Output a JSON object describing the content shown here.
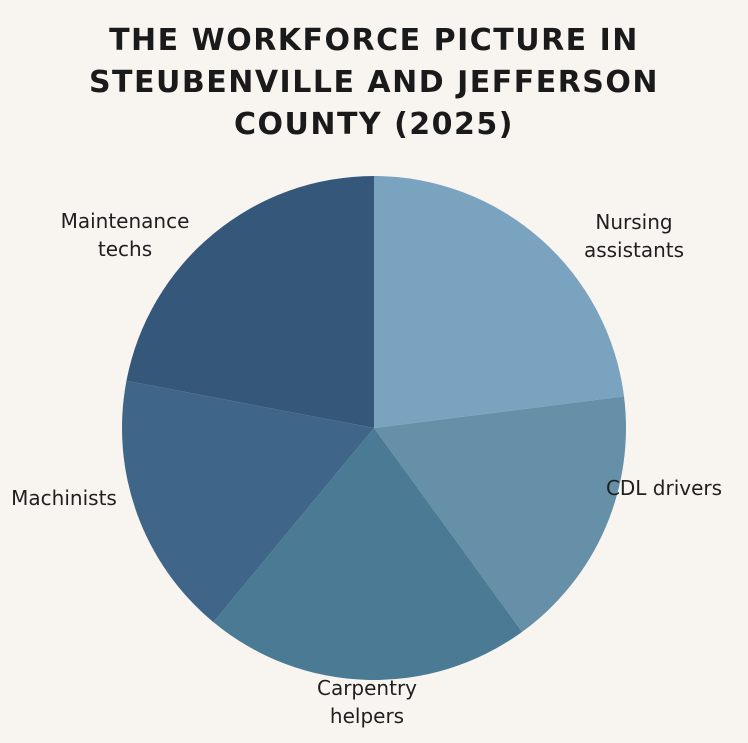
{
  "chart_data": {
    "type": "pie",
    "title": "THE WORKFORCE PICTURE IN STEUBENVILLE AND JEFFERSON COUNTY (2025)",
    "categories": [
      "Nursing assistants",
      "CDL drivers",
      "Carpentry helpers",
      "Machinists",
      "Maintenance techs"
    ],
    "values": [
      23,
      17,
      21,
      17,
      22
    ],
    "colors": [
      "#7aa3bf",
      "#6590a7",
      "#4b7a94",
      "#3f6689",
      "#34577a"
    ]
  }
}
